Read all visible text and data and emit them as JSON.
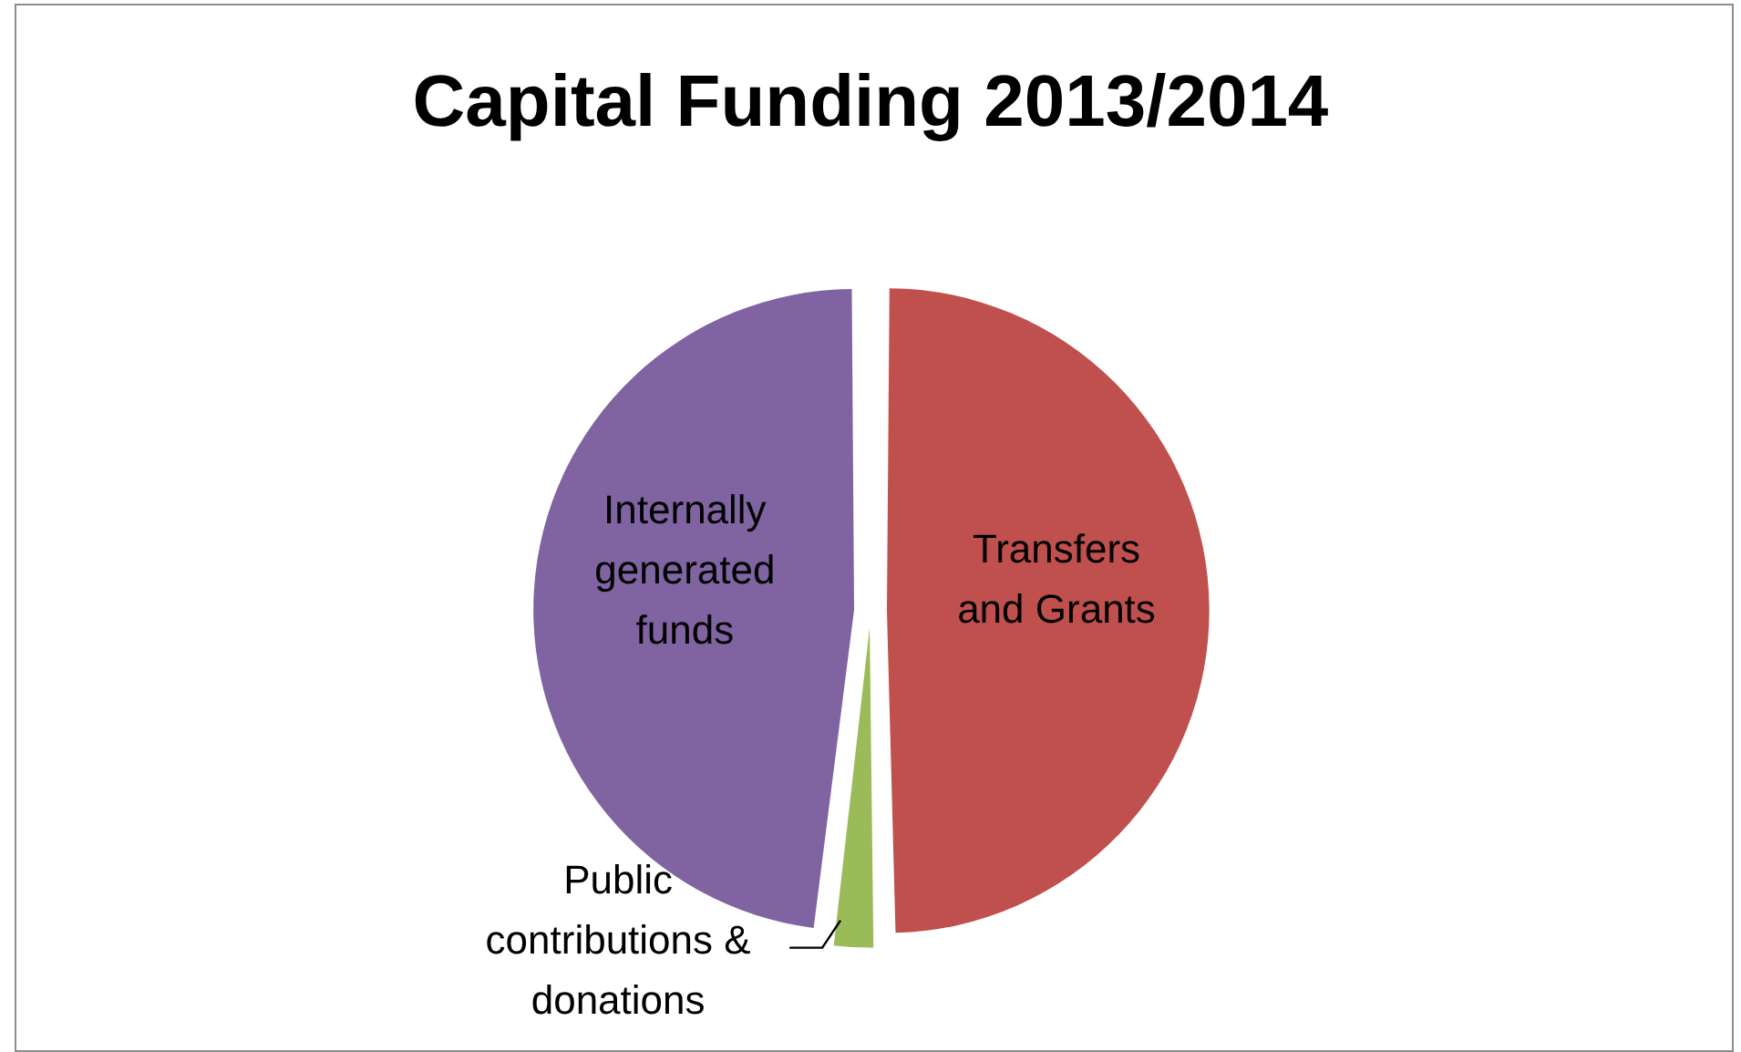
{
  "chart_data": {
    "type": "pie",
    "title": "Capital Funding 2013/2014",
    "categories": [
      "Transfers and Grants",
      "Public contributions & donations",
      "Internally generated funds"
    ],
    "values": [
      49.7,
      2.2,
      48.1
    ],
    "colors": [
      "#c0504d",
      "#9bbb59",
      "#8064a2"
    ],
    "legend": false
  }
}
